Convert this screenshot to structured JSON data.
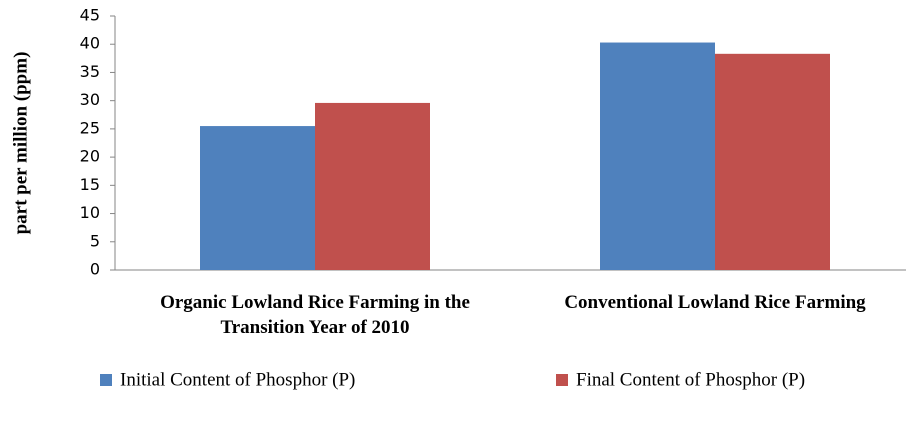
{
  "chart_data": {
    "type": "bar",
    "ylabel": "part per million (ppm)",
    "categories": [
      "Organic Lowland Rice Farming in the Transition Year of 2010",
      "Conventional Lowland Rice Farming"
    ],
    "series": [
      {
        "name": "Initial Content of Phosphor (P)",
        "color": "#4f81bd",
        "values": [
          25.5,
          40.3
        ]
      },
      {
        "name": "Final Content of Phosphor (P)",
        "color": "#c0504d",
        "values": [
          29.6,
          38.3
        ]
      }
    ],
    "ylim": [
      0,
      45
    ],
    "yticks": [
      0,
      5,
      10,
      15,
      20,
      25,
      30,
      35,
      40,
      45
    ],
    "grid": false,
    "legend": "bottom"
  }
}
